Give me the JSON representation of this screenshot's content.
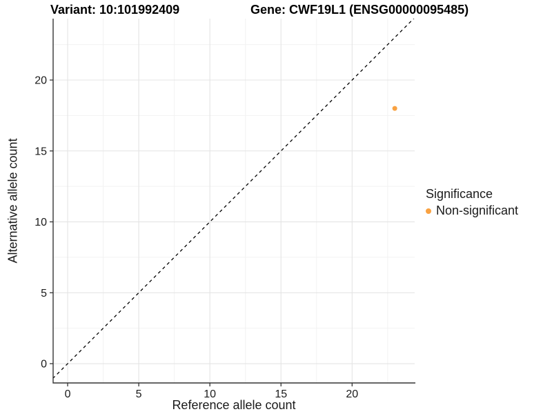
{
  "chart_data": {
    "type": "scatter",
    "title": {
      "variant": "Variant: 10:101992409",
      "gene": "Gene: CWF19L1 (ENSG00000095485)"
    },
    "xlabel": "Reference allele count",
    "ylabel": "Alternative allele count",
    "axes": {
      "xlim": [
        -1.02,
        24.4
      ],
      "ylim": [
        -1.36,
        24.33
      ],
      "xticks": [
        0,
        5,
        10,
        15,
        20
      ],
      "yticks": [
        0,
        5,
        10,
        15,
        20
      ],
      "xminor": [
        2.5,
        7.5,
        12.5,
        17.5,
        22.5
      ],
      "yminor": [
        2.5,
        7.5,
        12.5,
        17.5,
        22.5
      ],
      "grid": "major+minor"
    },
    "identity_line": {
      "style": "dashed",
      "color": "#000000",
      "slope": 1,
      "intercept": 0
    },
    "series": [
      {
        "name": "Non-significant",
        "color": "#F9A242",
        "point_radius": 3.5,
        "points": [
          [
            23,
            18
          ]
        ]
      }
    ],
    "legend": {
      "title": "Significance",
      "position": "right",
      "items": [
        {
          "label": "Non-significant",
          "color": "#F9A242"
        }
      ]
    }
  },
  "colors": {
    "background": "#FFFFFF",
    "axis_line": "#333333",
    "tick_mark": "#333333",
    "grid_major": "#E4E4E4",
    "grid_minor": "#F2F2F2",
    "text": "#1A1A1A",
    "accent_orange": "#F9A242"
  }
}
